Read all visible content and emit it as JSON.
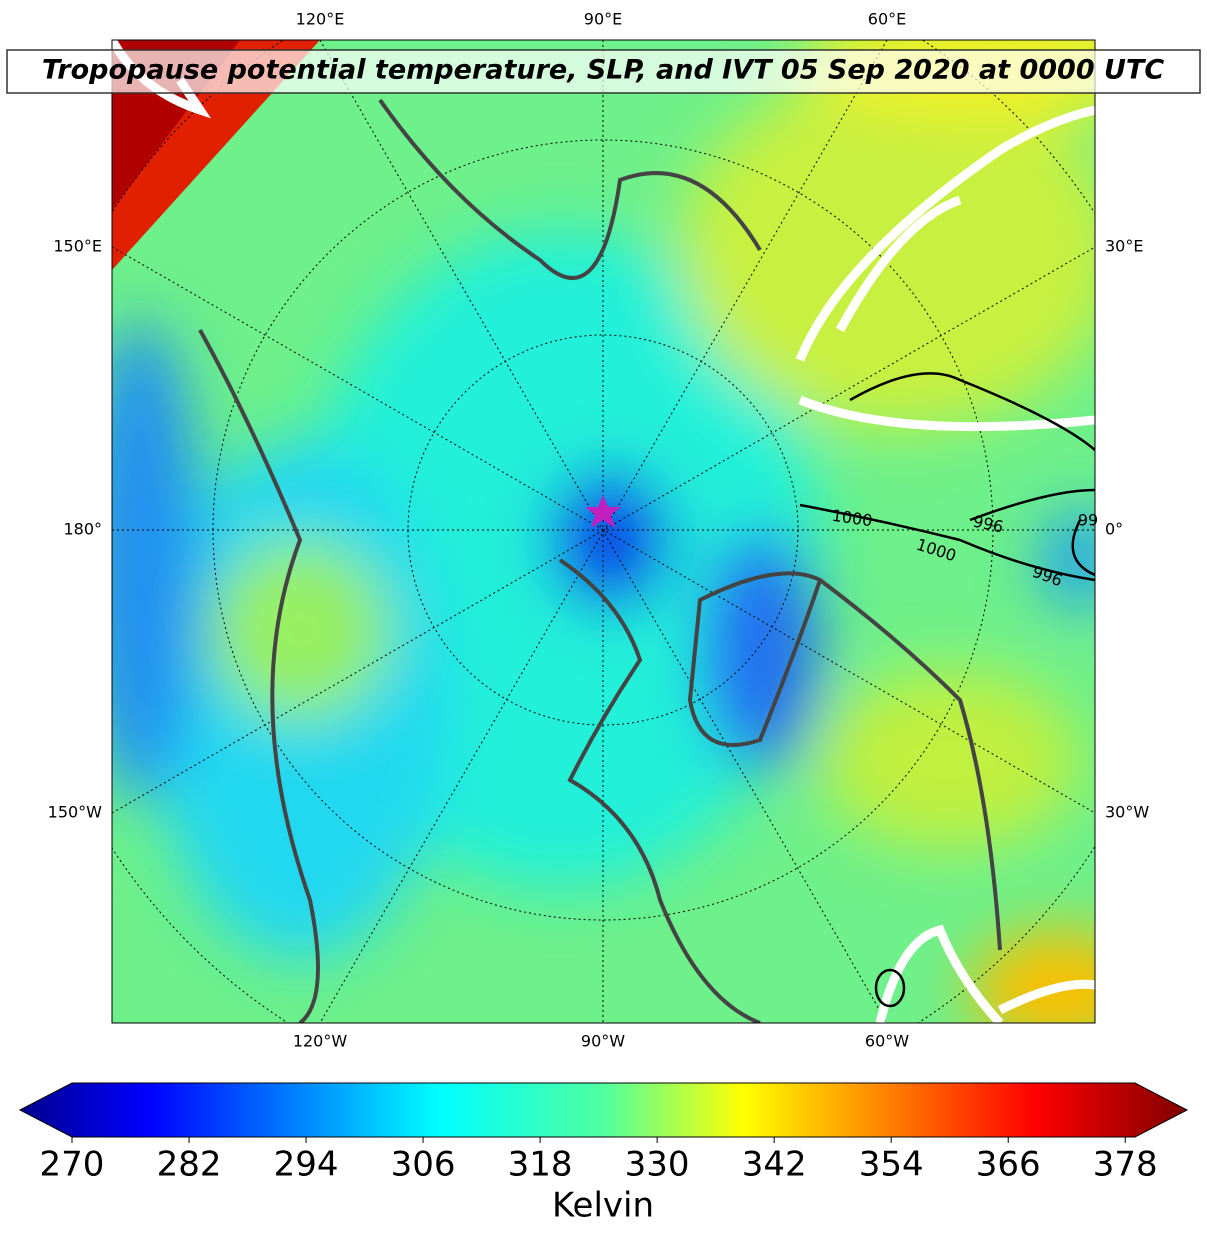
{
  "title": "Tropopause potential temperature, SLP, and IVT 05 Sep 2020 at 0000 UTC",
  "lon_labels": {
    "top": [
      "120°E",
      "90°E",
      "60°E"
    ],
    "bottom": [
      "120°W",
      "90°W",
      "60°W"
    ],
    "left": [
      "150°E",
      "180°",
      "150°W"
    ],
    "right": [
      "30°E",
      "0°",
      "30°W"
    ]
  },
  "contour_labels": [
    "1000",
    "996",
    "1000",
    "996",
    "99"
  ],
  "colorbar": {
    "lim": [
      270,
      379
    ],
    "ticks": [
      270,
      282,
      294,
      306,
      318,
      330,
      342,
      354,
      366,
      378
    ],
    "label": "Kelvin"
  }
}
